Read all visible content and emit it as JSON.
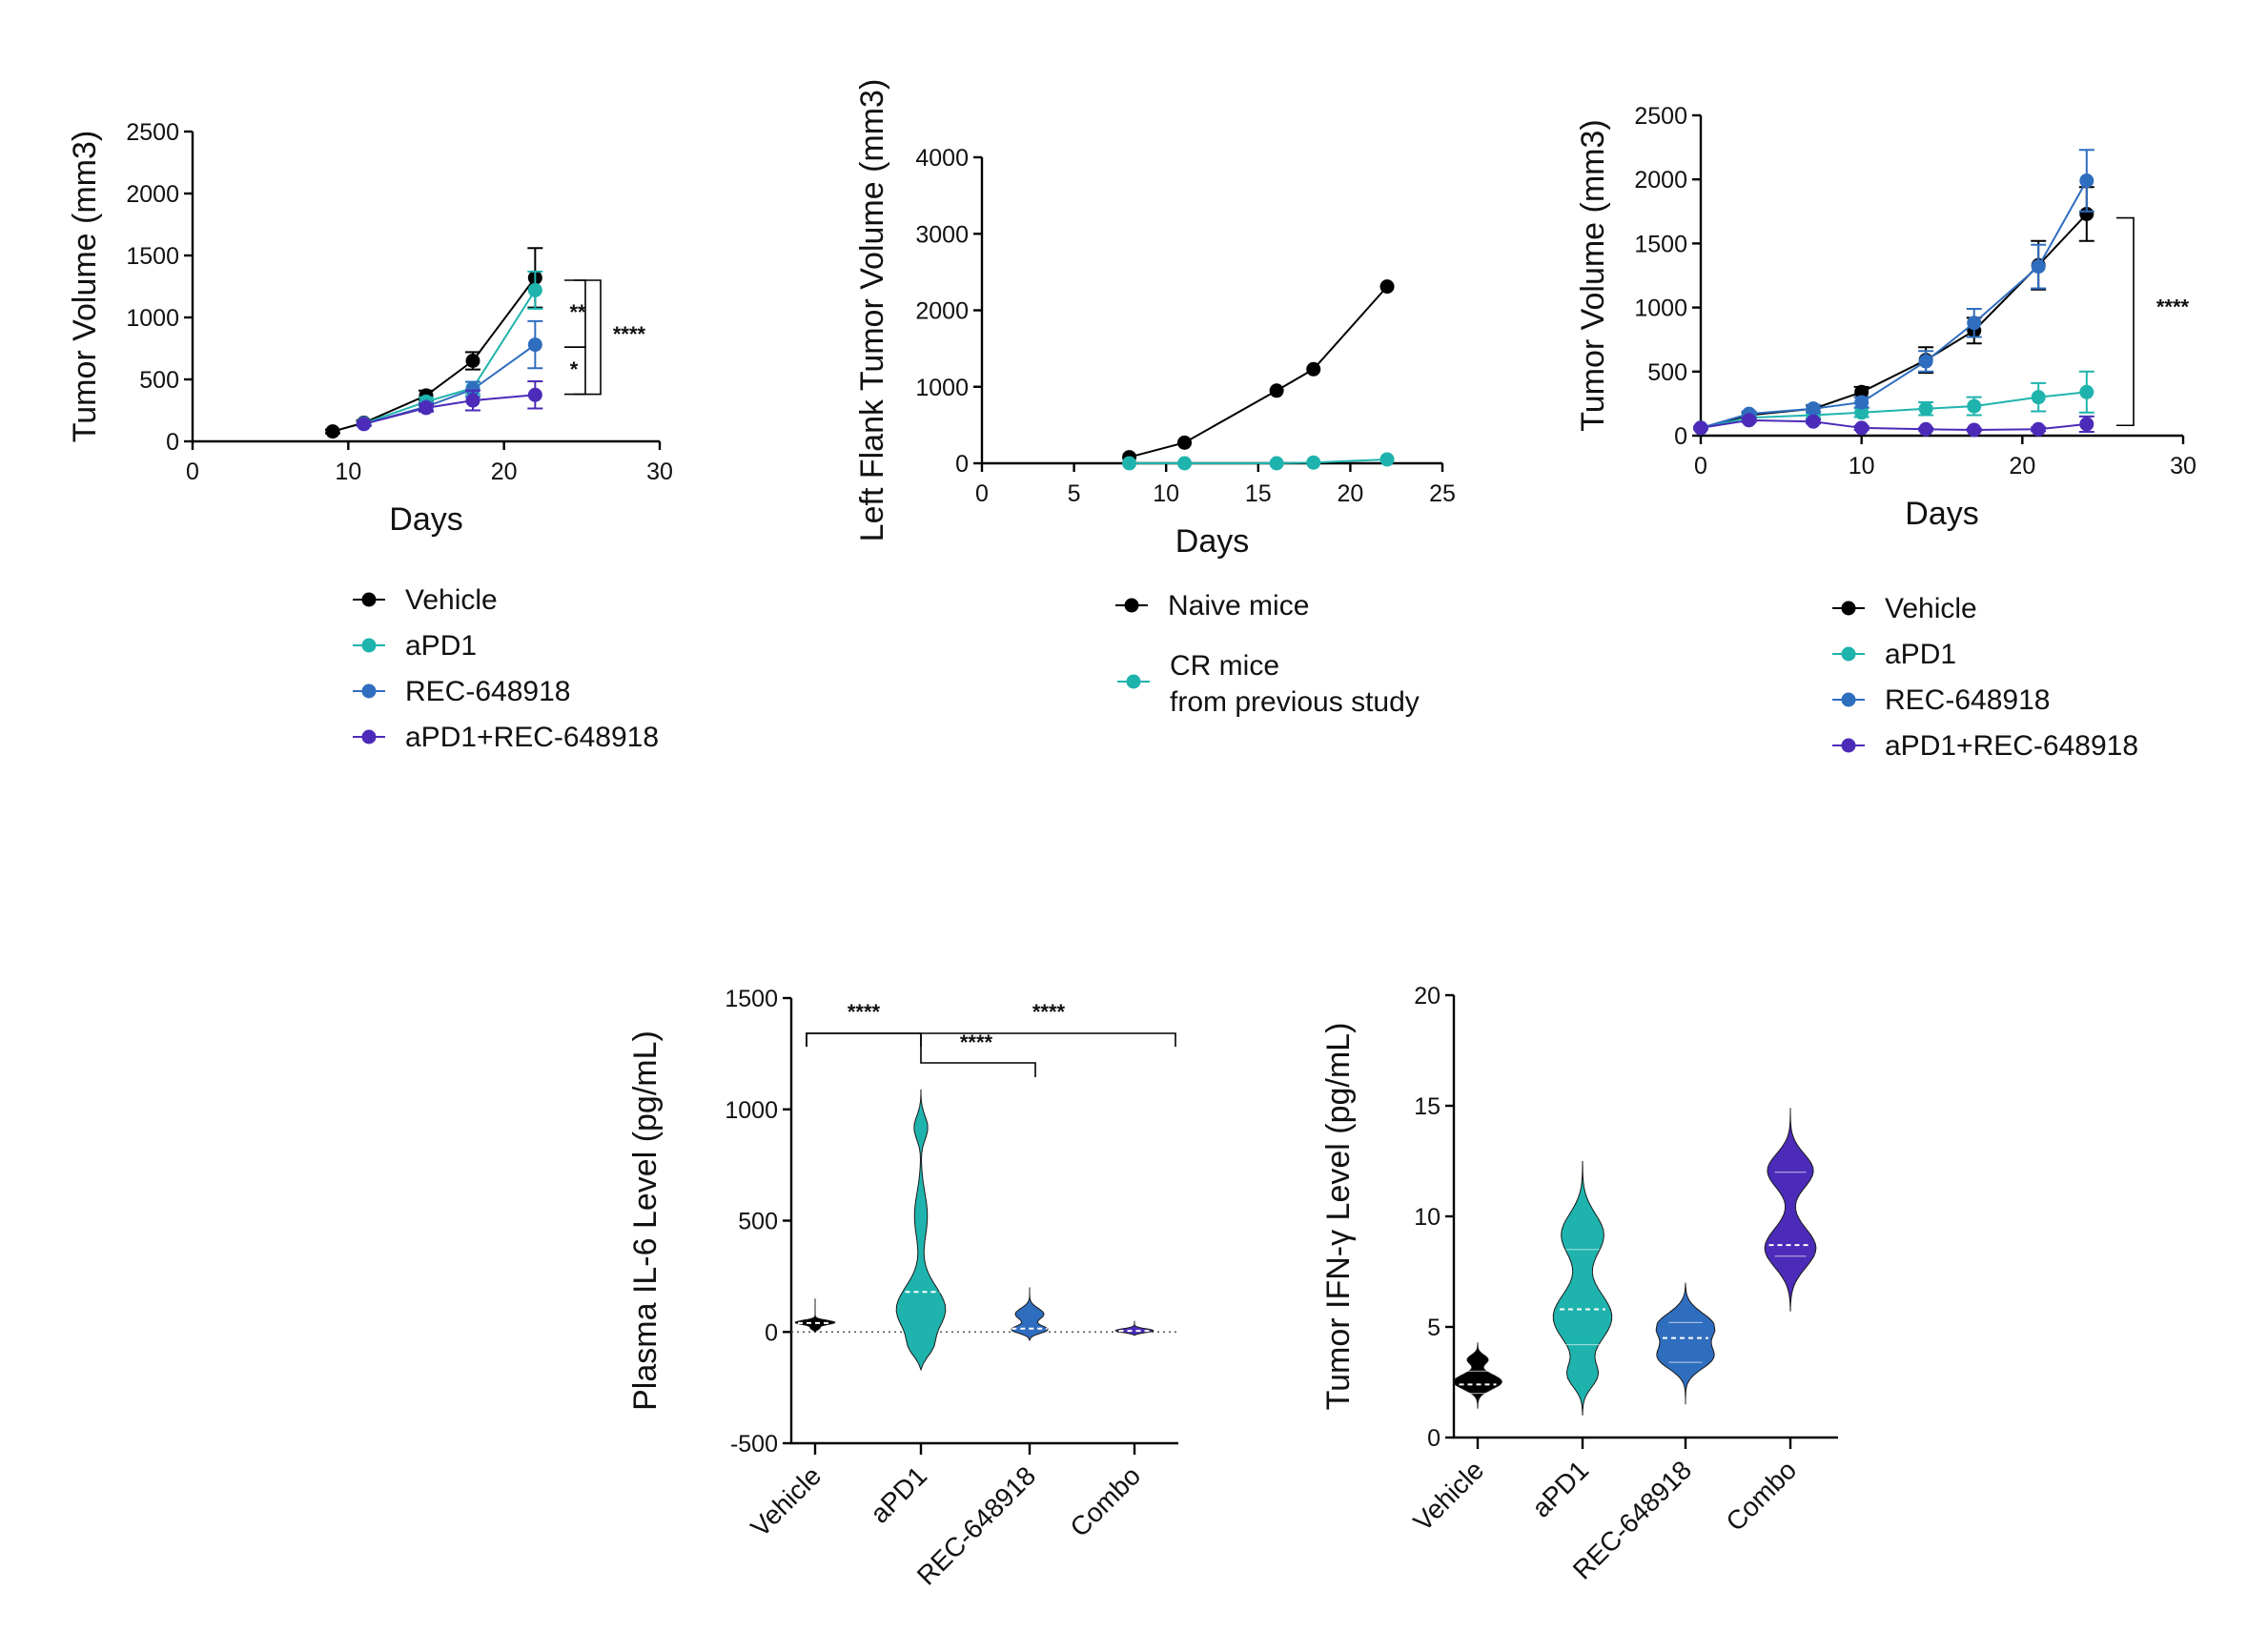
{
  "colors": {
    "Vehicle": "#000000",
    "aPD1": "#1fb3ad",
    "REC-648918": "#2f6dbf",
    "aPD1+REC-648918": "#4b2bb8",
    "Naive mice": "#000000",
    "CR mice": "#1fb3ad",
    "Combo": "#4b2bb8"
  },
  "chart_data": [
    {
      "type": "line",
      "title": "",
      "xlabel": "Days",
      "ylabel": "Tumor Volume (mm3)",
      "xlim": [
        0,
        30
      ],
      "ylim": [
        0,
        2500
      ],
      "xticks": [
        0,
        10,
        20,
        30
      ],
      "yticks": [
        0,
        500,
        1000,
        1500,
        2000,
        2500
      ],
      "series": [
        {
          "name": "Vehicle",
          "x": [
            9,
            11,
            15,
            18,
            22
          ],
          "values": [
            80,
            150,
            370,
            650,
            1320
          ],
          "err": [
            15,
            20,
            40,
            70,
            240
          ]
        },
        {
          "name": "aPD1",
          "x": [
            11,
            15,
            18,
            22
          ],
          "values": [
            145,
            320,
            430,
            1220
          ],
          "err": [
            15,
            35,
            50,
            150
          ]
        },
        {
          "name": "REC-648918",
          "x": [
            11,
            15,
            18,
            22
          ],
          "values": [
            140,
            280,
            420,
            780
          ],
          "err": [
            15,
            30,
            60,
            190
          ]
        },
        {
          "name": "aPD1+REC-648918",
          "x": [
            11,
            15,
            18,
            22
          ],
          "values": [
            140,
            270,
            330,
            375
          ],
          "err": [
            15,
            30,
            80,
            110
          ]
        }
      ],
      "legend": [
        "Vehicle",
        "aPD1",
        "REC-648918",
        "aPD1+REC-648918"
      ],
      "annotations": [
        "**",
        "*",
        "****"
      ]
    },
    {
      "type": "line",
      "title": "",
      "xlabel": "Days",
      "ylabel": "Left Flank Tumor Volume (mm3)",
      "xlim": [
        0,
        25
      ],
      "ylim": [
        0,
        4000
      ],
      "xticks": [
        0,
        5,
        10,
        15,
        20,
        25
      ],
      "yticks": [
        0,
        1000,
        2000,
        3000,
        4000
      ],
      "series": [
        {
          "name": "Naive mice",
          "x": [
            8,
            11,
            16,
            18,
            22
          ],
          "values": [
            80,
            270,
            950,
            1230,
            2310
          ]
        },
        {
          "name": "CR mice",
          "x": [
            8,
            11,
            16,
            18,
            22
          ],
          "values": [
            0,
            0,
            0,
            10,
            50
          ]
        }
      ],
      "legend": [
        "Naive mice",
        "CR mice",
        "from previous study"
      ]
    },
    {
      "type": "line",
      "title": "",
      "xlabel": "Days",
      "ylabel": "Tumor Volume (mm3)",
      "xlim": [
        0,
        30
      ],
      "ylim": [
        0,
        2500
      ],
      "xticks": [
        0,
        10,
        20,
        30
      ],
      "yticks": [
        0,
        500,
        1000,
        1500,
        2000,
        2500
      ],
      "series": [
        {
          "name": "Vehicle",
          "x": [
            0,
            3,
            7,
            10,
            14,
            17,
            21,
            24
          ],
          "values": [
            60,
            160,
            210,
            340,
            590,
            820,
            1330,
            1730
          ],
          "err": [
            10,
            20,
            25,
            40,
            100,
            100,
            190,
            210
          ]
        },
        {
          "name": "aPD1",
          "x": [
            0,
            3,
            7,
            10,
            14,
            17,
            21,
            24
          ],
          "values": [
            60,
            140,
            160,
            180,
            210,
            230,
            300,
            340
          ],
          "err": [
            10,
            20,
            25,
            35,
            50,
            70,
            110,
            160
          ]
        },
        {
          "name": "REC-648918",
          "x": [
            0,
            3,
            7,
            10,
            14,
            17,
            21,
            24
          ],
          "values": [
            60,
            170,
            210,
            260,
            580,
            880,
            1320,
            1990
          ],
          "err": [
            10,
            20,
            30,
            40,
            80,
            110,
            170,
            240
          ]
        },
        {
          "name": "aPD1+REC-648918",
          "x": [
            0,
            3,
            7,
            10,
            14,
            17,
            21,
            24
          ],
          "values": [
            60,
            120,
            110,
            60,
            50,
            45,
            50,
            90
          ],
          "err": [
            10,
            15,
            15,
            15,
            10,
            10,
            15,
            60
          ]
        }
      ],
      "legend": [
        "Vehicle",
        "aPD1",
        "REC-648918",
        "aPD1+REC-648918"
      ],
      "annotations": [
        "****"
      ]
    },
    {
      "type": "violin",
      "title": "",
      "xlabel": "",
      "ylabel": "Plasma IL-6 Level (pg/mL)",
      "ylim": [
        -500,
        1500
      ],
      "yticks": [
        -500,
        0,
        500,
        1000,
        1500
      ],
      "categories": [
        "Vehicle",
        "aPD1",
        "REC-648918",
        "Combo"
      ],
      "medians": [
        40,
        180,
        15,
        5
      ],
      "ranges": [
        [
          0,
          150
        ],
        [
          -170,
          1090
        ],
        [
          -40,
          200
        ],
        [
          -15,
          50
        ]
      ],
      "reference_line": 0,
      "annotations": [
        "****",
        "****",
        "****"
      ]
    },
    {
      "type": "violin",
      "title": "",
      "xlabel": "",
      "ylabel": "Tumor IFN-γ Level (pg/mL)",
      "ylim": [
        0,
        20
      ],
      "yticks": [
        0,
        5,
        10,
        15,
        20
      ],
      "categories": [
        "Vehicle",
        "aPD1",
        "REC-648918",
        "Combo"
      ],
      "medians": [
        2.4,
        5.8,
        4.5,
        8.7
      ],
      "ranges": [
        [
          1.3,
          4.3
        ],
        [
          1.0,
          12.5
        ],
        [
          1.5,
          7.0
        ],
        [
          5.7,
          14.9
        ]
      ]
    }
  ]
}
